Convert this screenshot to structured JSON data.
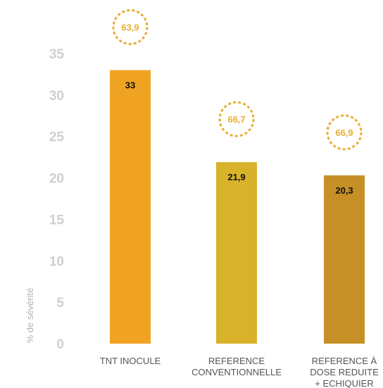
{
  "chart_data": {
    "type": "bar",
    "title": "",
    "xlabel": "",
    "ylabel": "% de sévérité",
    "ylim": [
      0,
      35
    ],
    "yticks": [
      0,
      5,
      10,
      15,
      20,
      25,
      30,
      35
    ],
    "grid": false,
    "categories": [
      [
        "TNT INOCULE"
      ],
      [
        "REFERENCE",
        "CONVENTIONNELLE"
      ],
      [
        "REFERENCE À",
        "DOSE REDUITE",
        "+ ECHIQUIER"
      ]
    ],
    "values": [
      33,
      21.9,
      20.3
    ],
    "value_labels": [
      "33",
      "21,9",
      "20,3"
    ],
    "annotations": [
      "63,9",
      "66,7",
      "66,9"
    ],
    "colors": {
      "bars": [
        "#F0A323",
        "#D9B22B",
        "#C69026"
      ],
      "annotation": "#E8AE35",
      "ticks": "#CFCFCF",
      "axis_label": "#B3B3B3",
      "category_text": "#555555"
    }
  }
}
